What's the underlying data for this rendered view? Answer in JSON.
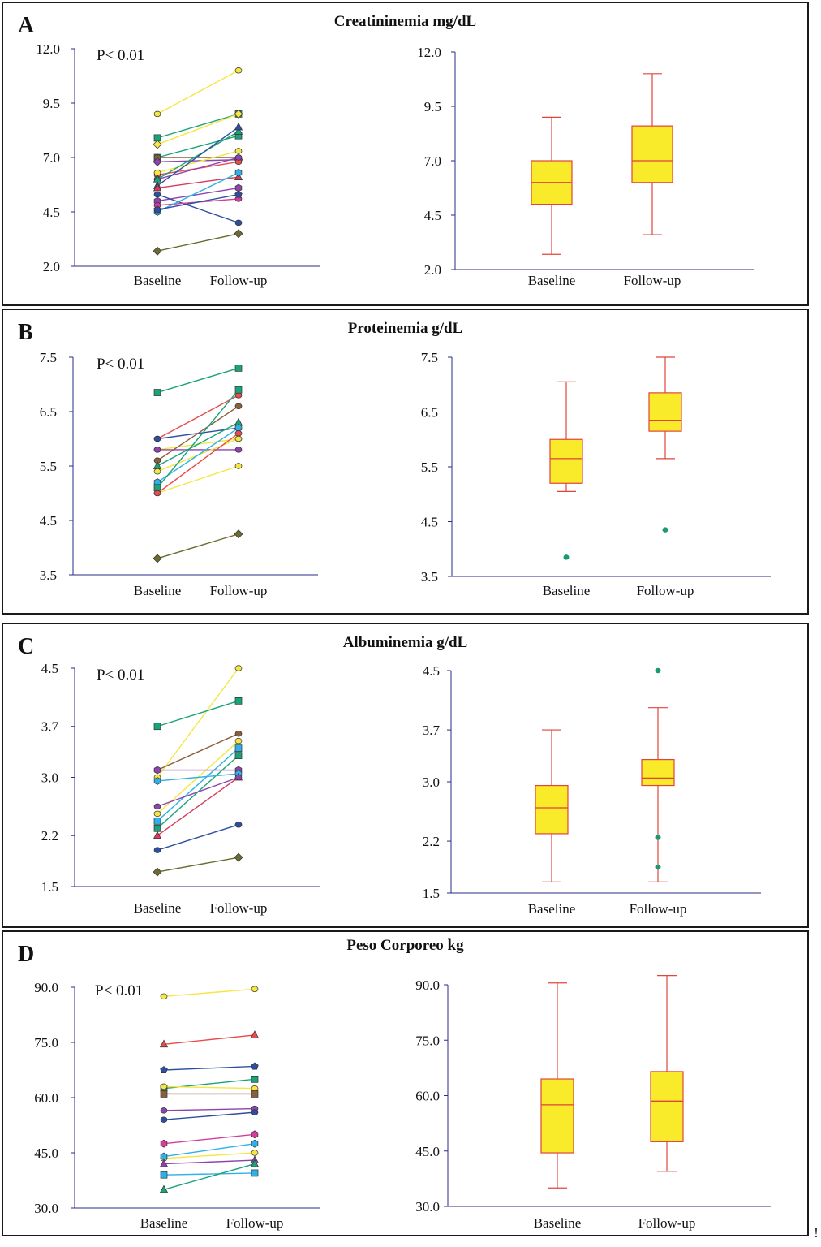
{
  "panels": [
    {
      "letter": "A",
      "title": "Creatininemia mg/dL",
      "pvalue": "P< 0.01",
      "chart_data": [
        {
          "type": "line",
          "title": "Creatininemia mg/dL",
          "categories": [
            "Baseline",
            "Follow-up"
          ],
          "ylim": [
            2.0,
            12.0
          ],
          "yticks": [
            "12.0",
            "9.5",
            "7.0",
            "4.5",
            "2.0"
          ],
          "series": [
            {
              "name": "s1",
              "color": "#f5e642",
              "marker": "circle",
              "values": [
                9.0,
                11.0
              ]
            },
            {
              "name": "s2",
              "color": "#1aa37a",
              "marker": "square",
              "values": [
                7.9,
                9.0
              ]
            },
            {
              "name": "s3",
              "color": "#f5e642",
              "marker": "diamond",
              "values": [
                7.6,
                9.0
              ]
            },
            {
              "name": "s4",
              "color": "#1aa37a",
              "marker": "square",
              "values": [
                7.0,
                8.0
              ]
            },
            {
              "name": "s5",
              "color": "#8b5e3c",
              "marker": "circle",
              "values": [
                7.0,
                7.0
              ]
            },
            {
              "name": "s6",
              "color": "#8e44ad",
              "marker": "diamond",
              "values": [
                6.8,
                6.9
              ]
            },
            {
              "name": "s7",
              "color": "#e84c4c",
              "marker": "circle",
              "values": [
                6.2,
                6.8
              ]
            },
            {
              "name": "s8",
              "color": "#f5e642",
              "marker": "circle",
              "values": [
                6.3,
                7.3
              ]
            },
            {
              "name": "s9",
              "color": "#8e44ad",
              "marker": "circle",
              "values": [
                6.0,
                7.0
              ]
            },
            {
              "name": "s10",
              "color": "#1aa37a",
              "marker": "triangle",
              "values": [
                6.0,
                8.2
              ]
            },
            {
              "name": "s11",
              "color": "#2e4fa0",
              "marker": "triangle",
              "values": [
                5.7,
                8.4
              ]
            },
            {
              "name": "s12",
              "color": "#d63c5c",
              "marker": "triangle",
              "values": [
                5.6,
                6.1
              ]
            },
            {
              "name": "s13",
              "color": "#8e44ad",
              "marker": "hexagon",
              "values": [
                5.0,
                5.6
              ]
            },
            {
              "name": "s14",
              "color": "#2e4fa0",
              "marker": "circle",
              "values": [
                5.3,
                4.0
              ]
            },
            {
              "name": "s15",
              "color": "#d63c9a",
              "marker": "circle",
              "values": [
                4.8,
                5.1
              ]
            },
            {
              "name": "s16",
              "color": "#2fb0e8",
              "marker": "hexagon",
              "values": [
                4.5,
                6.3
              ]
            },
            {
              "name": "s17",
              "color": "#2e4fa0",
              "marker": "pentagon",
              "values": [
                4.6,
                5.3
              ]
            },
            {
              "name": "s18",
              "color": "#6b6b2f",
              "marker": "diamond",
              "values": [
                2.7,
                3.5
              ]
            }
          ]
        },
        {
          "type": "box",
          "title": "Creatininemia mg/dL",
          "categories": [
            "Baseline",
            "Follow-up"
          ],
          "ylim": [
            2.0,
            12.0
          ],
          "yticks": [
            "12.0",
            "9.5",
            "7.0",
            "4.5",
            "2.0"
          ],
          "boxes": [
            {
              "name": "Baseline",
              "min": 2.7,
              "q1": 5.0,
              "median": 6.0,
              "q3": 7.0,
              "max": 9.0,
              "outliers": []
            },
            {
              "name": "Follow-up",
              "min": 3.6,
              "q1": 6.0,
              "median": 7.0,
              "q3": 8.6,
              "max": 11.0,
              "outliers": []
            }
          ]
        }
      ]
    },
    {
      "letter": "B",
      "title": "Proteinemia g/dL",
      "pvalue": "P< 0.01",
      "chart_data": [
        {
          "type": "line",
          "title": "Proteinemia g/dL",
          "categories": [
            "Baseline",
            "Follow-up"
          ],
          "ylim": [
            3.5,
            7.5
          ],
          "yticks": [
            "7.5",
            "6.5",
            "5.5",
            "4.5",
            "3.5"
          ],
          "series": [
            {
              "name": "s1",
              "color": "#1aa37a",
              "marker": "square",
              "values": [
                6.85,
                7.3
              ]
            },
            {
              "name": "s2",
              "color": "#e84c4c",
              "marker": "circle",
              "values": [
                6.0,
                6.8
              ]
            },
            {
              "name": "s3",
              "color": "#2e4fa0",
              "marker": "circle",
              "values": [
                6.0,
                6.2
              ]
            },
            {
              "name": "s4",
              "color": "#f5e642",
              "marker": "circle",
              "values": [
                5.8,
                6.0
              ]
            },
            {
              "name": "s5",
              "color": "#8e44ad",
              "marker": "circle",
              "values": [
                5.8,
                5.8
              ]
            },
            {
              "name": "s6",
              "color": "#8b5e3c",
              "marker": "circle",
              "values": [
                5.6,
                6.6
              ]
            },
            {
              "name": "s7",
              "color": "#1aa37a",
              "marker": "triangle",
              "values": [
                5.5,
                6.3
              ]
            },
            {
              "name": "s8",
              "color": "#f5e642",
              "marker": "circle",
              "values": [
                5.4,
                6.0
              ]
            },
            {
              "name": "s9",
              "color": "#2fb0e8",
              "marker": "hexagon",
              "values": [
                5.2,
                6.2
              ]
            },
            {
              "name": "s10",
              "color": "#1aa37a",
              "marker": "square",
              "values": [
                5.1,
                6.9
              ]
            },
            {
              "name": "s11",
              "color": "#f5e642",
              "marker": "circle",
              "values": [
                5.0,
                5.5
              ]
            },
            {
              "name": "s12",
              "color": "#e84c4c",
              "marker": "circle",
              "values": [
                5.0,
                6.1
              ]
            },
            {
              "name": "s13",
              "color": "#6b6b2f",
              "marker": "diamond",
              "values": [
                3.8,
                4.25
              ]
            }
          ]
        },
        {
          "type": "box",
          "title": "Proteinemia g/dL",
          "categories": [
            "Baseline",
            "Follow-up"
          ],
          "ylim": [
            3.5,
            7.5
          ],
          "yticks": [
            "7.5",
            "6.5",
            "5.5",
            "4.5",
            "3.5"
          ],
          "boxes": [
            {
              "name": "Baseline",
              "min": 5.05,
              "q1": 5.2,
              "median": 5.65,
              "q3": 6.0,
              "max": 7.05,
              "outliers": [
                3.85
              ]
            },
            {
              "name": "Follow-up",
              "min": 5.65,
              "q1": 6.15,
              "median": 6.35,
              "q3": 6.85,
              "max": 7.5,
              "outliers": [
                4.35
              ]
            }
          ]
        }
      ]
    },
    {
      "letter": "C",
      "title": "Albuminemia g/dL",
      "pvalue": "P< 0.01",
      "chart_data": [
        {
          "type": "line",
          "title": "Albuminemia g/dL",
          "categories": [
            "Baseline",
            "Follow-up"
          ],
          "ylim": [
            1.5,
            4.5
          ],
          "yticks": [
            "4.5",
            "3.7",
            "3.0",
            "2.2",
            "1.5"
          ],
          "series": [
            {
              "name": "s1",
              "color": "#f5e642",
              "marker": "circle",
              "values": [
                3.0,
                4.5
              ]
            },
            {
              "name": "s2",
              "color": "#1aa37a",
              "marker": "square",
              "values": [
                3.7,
                4.05
              ]
            },
            {
              "name": "s3",
              "color": "#8b5e3c",
              "marker": "circle",
              "values": [
                3.1,
                3.6
              ]
            },
            {
              "name": "s4",
              "color": "#f5e642",
              "marker": "circle",
              "values": [
                2.5,
                3.5
              ]
            },
            {
              "name": "s5",
              "color": "#2fb0e8",
              "marker": "square",
              "values": [
                2.4,
                3.4
              ]
            },
            {
              "name": "s6",
              "color": "#1aa37a",
              "marker": "square",
              "values": [
                2.3,
                3.3
              ]
            },
            {
              "name": "s7",
              "color": "#8e44ad",
              "marker": "hexagon",
              "values": [
                3.1,
                3.1
              ]
            },
            {
              "name": "s8",
              "color": "#2fb0e8",
              "marker": "hexagon",
              "values": [
                2.95,
                3.05
              ]
            },
            {
              "name": "s9",
              "color": "#d63c5c",
              "marker": "triangle",
              "values": [
                2.2,
                3.0
              ]
            },
            {
              "name": "s10",
              "color": "#8e44ad",
              "marker": "circle",
              "values": [
                2.6,
                3.0
              ]
            },
            {
              "name": "s11",
              "color": "#2e4fa0",
              "marker": "circle",
              "values": [
                2.0,
                2.35
              ]
            },
            {
              "name": "s12",
              "color": "#6b6b2f",
              "marker": "diamond",
              "values": [
                1.7,
                1.9
              ]
            }
          ]
        },
        {
          "type": "box",
          "title": "Albuminemia g/dL",
          "categories": [
            "Baseline",
            "Follow-up"
          ],
          "ylim": [
            1.5,
            4.5
          ],
          "yticks": [
            "4.5",
            "3.7",
            "3.0",
            "2.2",
            "1.5"
          ],
          "boxes": [
            {
              "name": "Baseline",
              "min": 1.65,
              "q1": 2.3,
              "median": 2.65,
              "q3": 2.95,
              "max": 3.7,
              "outliers": []
            },
            {
              "name": "Follow-up",
              "min": 1.65,
              "q1": 2.95,
              "median": 3.05,
              "q3": 3.3,
              "max": 4.0,
              "outliers": [
                4.5,
                2.25,
                1.85
              ]
            }
          ]
        }
      ]
    },
    {
      "letter": "D",
      "title": "Peso Corporeo  kg",
      "pvalue": "P< 0.01",
      "chart_data": [
        {
          "type": "line",
          "title": "Peso Corporeo  kg",
          "categories": [
            "Baseline",
            "Follow-up"
          ],
          "ylim": [
            30.0,
            90.0
          ],
          "yticks": [
            "90.0",
            "75.0",
            "60.0",
            "45.0",
            "30.0"
          ],
          "series": [
            {
              "name": "s1",
              "color": "#f5e642",
              "marker": "circle",
              "values": [
                87.5,
                89.5
              ]
            },
            {
              "name": "s2",
              "color": "#e84c4c",
              "marker": "triangle",
              "values": [
                74.5,
                77.0
              ]
            },
            {
              "name": "s3",
              "color": "#2e4fa0",
              "marker": "pentagon",
              "values": [
                67.5,
                68.5
              ]
            },
            {
              "name": "s4",
              "color": "#1aa37a",
              "marker": "square",
              "values": [
                62.5,
                65.0
              ]
            },
            {
              "name": "s5",
              "color": "#f5e642",
              "marker": "circle",
              "values": [
                63.0,
                62.5
              ]
            },
            {
              "name": "s6",
              "color": "#8b5e3c",
              "marker": "square",
              "values": [
                61.0,
                61.0
              ]
            },
            {
              "name": "s7",
              "color": "#8e44ad",
              "marker": "circle",
              "values": [
                56.5,
                57.0
              ]
            },
            {
              "name": "s8",
              "color": "#2e4fa0",
              "marker": "circle",
              "values": [
                54.0,
                56.0
              ]
            },
            {
              "name": "s9",
              "color": "#d63c9a",
              "marker": "hexagon",
              "values": [
                47.5,
                50.0
              ]
            },
            {
              "name": "s10",
              "color": "#f5e642",
              "marker": "circle",
              "values": [
                43.5,
                45.0
              ]
            },
            {
              "name": "s11",
              "color": "#2fb0e8",
              "marker": "hexagon",
              "values": [
                44.0,
                47.5
              ]
            },
            {
              "name": "s12",
              "color": "#8e44ad",
              "marker": "triangle",
              "values": [
                42.0,
                43.0
              ]
            },
            {
              "name": "s13",
              "color": "#2fb0e8",
              "marker": "square",
              "values": [
                39.0,
                39.5
              ]
            },
            {
              "name": "s14",
              "color": "#1aa37a",
              "marker": "triangle",
              "values": [
                35.0,
                42.0
              ]
            }
          ]
        },
        {
          "type": "box",
          "title": "Peso Corporeo  kg",
          "categories": [
            "Baseline",
            "Follow-up"
          ],
          "ylim": [
            30.0,
            90.0
          ],
          "yticks": [
            "90.0",
            "75.0",
            "60.0",
            "45.0",
            "30.0"
          ],
          "boxes": [
            {
              "name": "Baseline",
              "min": 35.0,
              "q1": 44.5,
              "median": 57.5,
              "q3": 64.5,
              "max": 90.5,
              "outliers": []
            },
            {
              "name": "Follow-up",
              "min": 39.5,
              "q1": 47.5,
              "median": 58.5,
              "q3": 66.5,
              "max": 92.5,
              "outliers": []
            }
          ]
        }
      ]
    }
  ],
  "stray_mark": "!",
  "colors": {
    "axis": "#2b2b8a",
    "box_fill": "#f9ea2a",
    "box_line": "#e0453a",
    "outlier": "#1a9a72"
  }
}
